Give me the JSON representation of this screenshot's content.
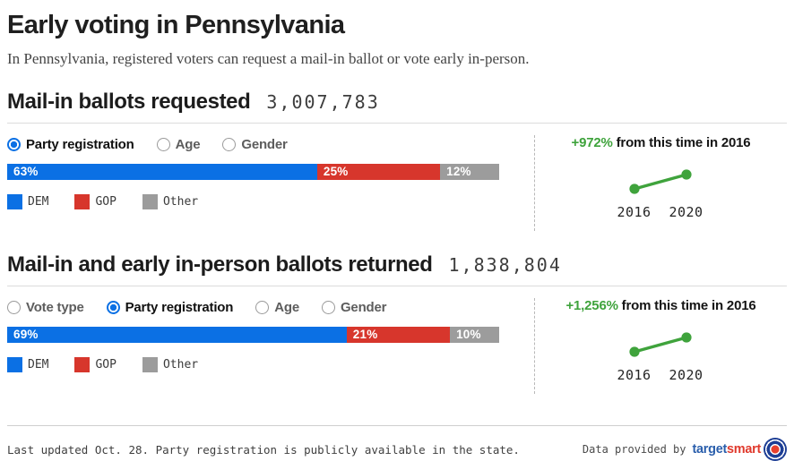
{
  "page": {
    "title": "Early voting in Pennsylvania",
    "subtitle": "In Pennsylvania, registered voters can request a mail-in ballot or vote early in-person."
  },
  "colors": {
    "dem": "#0b70e4",
    "gop": "#d7362c",
    "other": "#9c9c9c",
    "trend_green": "#3fa33c"
  },
  "sections": [
    {
      "title": "Mail-in ballots requested",
      "count": "3,007,783",
      "filters": [
        {
          "label": "Party registration",
          "selected": true
        },
        {
          "label": "Age",
          "selected": false
        },
        {
          "label": "Gender",
          "selected": false
        }
      ],
      "segments": [
        {
          "party": "DEM",
          "pct": 63,
          "label": "63%",
          "color": "#0b70e4"
        },
        {
          "party": "GOP",
          "pct": 25,
          "label": "25%",
          "color": "#d7362c"
        },
        {
          "party": "Other",
          "pct": 12,
          "label": "12%",
          "color": "#9c9c9c"
        }
      ],
      "trend": {
        "delta": "+972%",
        "suffix": " from this time in 2016",
        "years": [
          "2016",
          "2020"
        ]
      }
    },
    {
      "title": "Mail-in and early in-person ballots returned",
      "count": "1,838,804",
      "filters": [
        {
          "label": "Vote type",
          "selected": false
        },
        {
          "label": "Party registration",
          "selected": true
        },
        {
          "label": "Age",
          "selected": false
        },
        {
          "label": "Gender",
          "selected": false
        }
      ],
      "segments": [
        {
          "party": "DEM",
          "pct": 69,
          "label": "69%",
          "color": "#0b70e4"
        },
        {
          "party": "GOP",
          "pct": 21,
          "label": "21%",
          "color": "#d7362c"
        },
        {
          "party": "Other",
          "pct": 10,
          "label": "10%",
          "color": "#9c9c9c"
        }
      ],
      "trend": {
        "delta": "+1,256%",
        "suffix": " from this time in 2016",
        "years": [
          "2016",
          "2020"
        ]
      }
    }
  ],
  "footer": {
    "note": "Last updated Oct. 28. Party registration is publicly available in the state.",
    "credit": "Data provided by",
    "provider_word1": "target",
    "provider_word2": "smart"
  },
  "chart_data": [
    {
      "type": "bar",
      "title": "Mail-in ballots requested",
      "subtitle_total": 3007783,
      "stacked": true,
      "categories": [
        "DEM",
        "GOP",
        "Other"
      ],
      "values": [
        63,
        25,
        12
      ],
      "unit": "%",
      "legend_position": "bottom",
      "colors": [
        "#0b70e4",
        "#d7362c",
        "#9c9c9c"
      ]
    },
    {
      "type": "line",
      "title": "Mail-in ballots requested vs 2016",
      "x": [
        "2016",
        "2020"
      ],
      "annotation": "+972% from this time in 2016",
      "trend": "up"
    },
    {
      "type": "bar",
      "title": "Mail-in and early in-person ballots returned",
      "subtitle_total": 1838804,
      "stacked": true,
      "categories": [
        "DEM",
        "GOP",
        "Other"
      ],
      "values": [
        69,
        21,
        10
      ],
      "unit": "%",
      "legend_position": "bottom",
      "colors": [
        "#0b70e4",
        "#d7362c",
        "#9c9c9c"
      ]
    },
    {
      "type": "line",
      "title": "Mail-in and early in-person ballots returned vs 2016",
      "x": [
        "2016",
        "2020"
      ],
      "annotation": "+1,256% from this time in 2016",
      "trend": "up"
    }
  ]
}
